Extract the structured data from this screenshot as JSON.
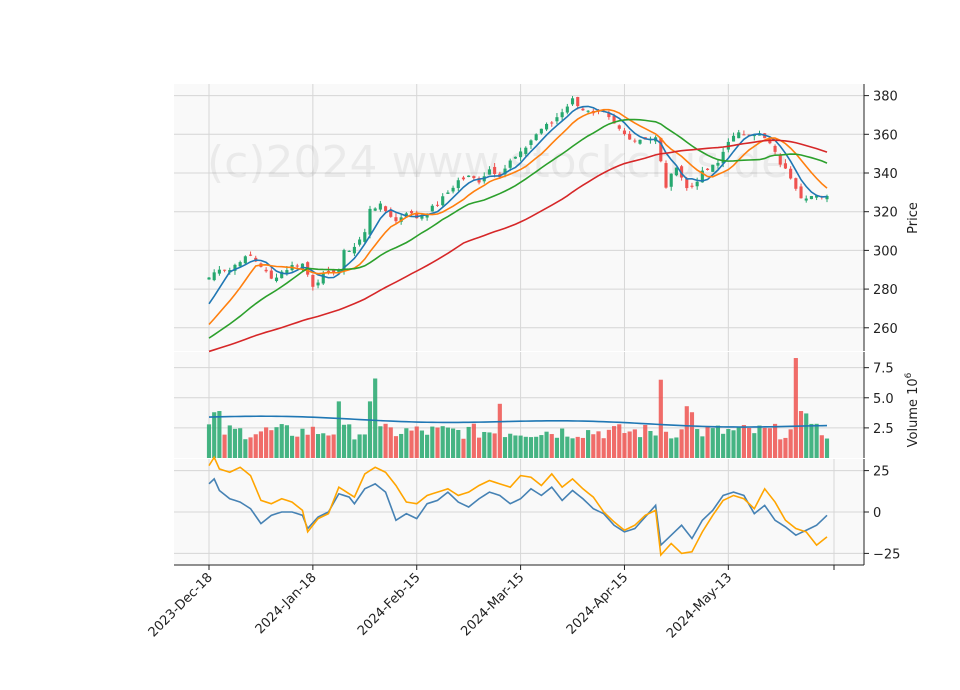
{
  "watermark": "(c)2024 www.stockcrus.de",
  "chart_data": [
    {
      "type": "candlestick",
      "panel": "price",
      "ylabel": "Price",
      "ylim": [
        248,
        386
      ],
      "yticks": [
        260,
        280,
        300,
        320,
        340,
        360,
        380
      ],
      "x_tick_labels": [
        "2023-Dec-18",
        "2024-Jan-18",
        "2024-Feb-15",
        "2024-Mar-15",
        "2024-Apr-15",
        "2024-May-13"
      ],
      "x_tick_indices": [
        0,
        20,
        40,
        60,
        80,
        100
      ],
      "n_bars": 120,
      "anchors": [
        [
          0,
          286
        ],
        [
          2,
          291
        ],
        [
          4,
          290
        ],
        [
          6,
          295
        ],
        [
          8,
          297
        ],
        [
          10,
          292
        ],
        [
          12,
          285
        ],
        [
          14,
          289
        ],
        [
          16,
          292
        ],
        [
          18,
          293
        ],
        [
          20,
          282
        ],
        [
          22,
          287
        ],
        [
          25,
          290
        ],
        [
          26,
          299
        ],
        [
          28,
          302
        ],
        [
          30,
          309
        ],
        [
          31,
          322
        ],
        [
          33,
          323
        ],
        [
          35,
          318
        ],
        [
          36,
          315
        ],
        [
          38,
          320
        ],
        [
          40,
          317
        ],
        [
          42,
          320
        ],
        [
          44,
          324
        ],
        [
          46,
          330
        ],
        [
          48,
          336
        ],
        [
          50,
          338
        ],
        [
          52,
          336
        ],
        [
          54,
          342
        ],
        [
          56,
          339
        ],
        [
          58,
          346
        ],
        [
          60,
          350
        ],
        [
          62,
          357
        ],
        [
          64,
          363
        ],
        [
          66,
          366
        ],
        [
          68,
          372
        ],
        [
          70,
          378
        ],
        [
          72,
          373
        ],
        [
          74,
          370
        ],
        [
          76,
          371
        ],
        [
          78,
          365
        ],
        [
          80,
          360
        ],
        [
          82,
          357
        ],
        [
          84,
          358
        ],
        [
          86,
          358
        ],
        [
          88,
          333
        ],
        [
          90,
          344
        ],
        [
          92,
          332
        ],
        [
          93,
          333
        ],
        [
          95,
          340
        ],
        [
          98,
          345
        ],
        [
          100,
          357
        ],
        [
          102,
          360
        ],
        [
          104,
          361
        ],
        [
          106,
          360
        ],
        [
          108,
          355
        ],
        [
          110,
          345
        ],
        [
          112,
          338
        ],
        [
          114,
          328
        ],
        [
          116,
          328
        ],
        [
          118,
          327
        ],
        [
          119,
          329
        ]
      ],
      "colors": {
        "up": "#26a86f",
        "down": "#ef5350"
      },
      "moving_averages": [
        {
          "window": 5,
          "color": "#1f77b4"
        },
        {
          "window": 10,
          "color": "#ff7f0e"
        },
        {
          "window": 20,
          "color": "#2ca02c"
        },
        {
          "window": 50,
          "color": "#d62728"
        }
      ],
      "ma_start": {
        "ma5": 269,
        "ma10": 259,
        "ma20": 253,
        "ma50": 247
      }
    },
    {
      "type": "bar",
      "panel": "volume",
      "ylabel": "Volume  10",
      "ylabel_exponent": "6",
      "ylim": [
        0,
        8.8
      ],
      "yticks": [
        2.5,
        5.0,
        7.5
      ],
      "ytick_labels": [
        "2.5",
        "5.0",
        "7.5"
      ],
      "typical_volume": 2.2,
      "spikes": [
        [
          1,
          3.8
        ],
        [
          2,
          3.9
        ],
        [
          25,
          4.7
        ],
        [
          31,
          4.7
        ],
        [
          32,
          6.6
        ],
        [
          56,
          4.5
        ],
        [
          87,
          6.5
        ],
        [
          92,
          4.3
        ],
        [
          93,
          3.8
        ],
        [
          113,
          8.3
        ],
        [
          114,
          3.9
        ],
        [
          115,
          3.7
        ]
      ],
      "volume_ma_start": 3.4,
      "volume_ma_end": 2.6,
      "volume_ma_color": "#1f77b4"
    },
    {
      "type": "line",
      "panel": "oscillator",
      "ylim": [
        -32,
        32
      ],
      "yticks": [
        -25,
        0,
        25
      ],
      "ytick_labels": [
        "−25",
        "0",
        "25"
      ],
      "series": [
        {
          "color": "#4682b4",
          "anchors": [
            [
              0,
              17
            ],
            [
              1,
              20
            ],
            [
              2,
              13
            ],
            [
              4,
              8
            ],
            [
              6,
              6
            ],
            [
              8,
              2
            ],
            [
              10,
              -7
            ],
            [
              12,
              -2
            ],
            [
              14,
              0
            ],
            [
              16,
              0
            ],
            [
              18,
              -2
            ],
            [
              19,
              -10
            ],
            [
              21,
              -3
            ],
            [
              23,
              0
            ],
            [
              25,
              11
            ],
            [
              27,
              9
            ],
            [
              28,
              5
            ],
            [
              30,
              14
            ],
            [
              32,
              17
            ],
            [
              34,
              12
            ],
            [
              36,
              -5
            ],
            [
              38,
              -1
            ],
            [
              40,
              -4
            ],
            [
              42,
              5
            ],
            [
              44,
              7
            ],
            [
              46,
              12
            ],
            [
              48,
              6
            ],
            [
              50,
              3
            ],
            [
              52,
              8
            ],
            [
              54,
              12
            ],
            [
              56,
              10
            ],
            [
              58,
              5
            ],
            [
              60,
              8
            ],
            [
              62,
              14
            ],
            [
              64,
              10
            ],
            [
              66,
              15
            ],
            [
              68,
              7
            ],
            [
              70,
              13
            ],
            [
              72,
              8
            ],
            [
              74,
              2
            ],
            [
              76,
              -1
            ],
            [
              78,
              -8
            ],
            [
              80,
              -12
            ],
            [
              82,
              -10
            ],
            [
              84,
              -3
            ],
            [
              86,
              4
            ],
            [
              87,
              -20
            ],
            [
              89,
              -14
            ],
            [
              91,
              -8
            ],
            [
              93,
              -16
            ],
            [
              95,
              -5
            ],
            [
              97,
              1
            ],
            [
              99,
              10
            ],
            [
              101,
              12
            ],
            [
              103,
              10
            ],
            [
              105,
              -1
            ],
            [
              107,
              4
            ],
            [
              109,
              -5
            ],
            [
              111,
              -9
            ],
            [
              113,
              -14
            ],
            [
              115,
              -11
            ],
            [
              117,
              -8
            ],
            [
              119,
              -2
            ]
          ]
        },
        {
          "color": "#ffa500",
          "anchors": [
            [
              0,
              28
            ],
            [
              1,
              33
            ],
            [
              2,
              26
            ],
            [
              4,
              24
            ],
            [
              6,
              27
            ],
            [
              8,
              22
            ],
            [
              10,
              7
            ],
            [
              12,
              5
            ],
            [
              14,
              8
            ],
            [
              16,
              6
            ],
            [
              18,
              1
            ],
            [
              19,
              -12
            ],
            [
              21,
              -4
            ],
            [
              23,
              -1
            ],
            [
              25,
              15
            ],
            [
              27,
              11
            ],
            [
              28,
              9
            ],
            [
              30,
              23
            ],
            [
              32,
              27
            ],
            [
              34,
              24
            ],
            [
              36,
              16
            ],
            [
              38,
              6
            ],
            [
              40,
              5
            ],
            [
              42,
              10
            ],
            [
              44,
              12
            ],
            [
              46,
              14
            ],
            [
              48,
              10
            ],
            [
              50,
              12
            ],
            [
              52,
              16
            ],
            [
              54,
              19
            ],
            [
              56,
              17
            ],
            [
              58,
              15
            ],
            [
              60,
              22
            ],
            [
              62,
              21
            ],
            [
              64,
              16
            ],
            [
              66,
              23
            ],
            [
              68,
              15
            ],
            [
              70,
              20
            ],
            [
              72,
              14
            ],
            [
              74,
              9
            ],
            [
              76,
              0
            ],
            [
              78,
              -6
            ],
            [
              80,
              -11
            ],
            [
              82,
              -8
            ],
            [
              84,
              -2
            ],
            [
              86,
              1
            ],
            [
              87,
              -26
            ],
            [
              89,
              -19
            ],
            [
              91,
              -25
            ],
            [
              93,
              -24
            ],
            [
              95,
              -12
            ],
            [
              97,
              -2
            ],
            [
              99,
              7
            ],
            [
              101,
              10
            ],
            [
              103,
              8
            ],
            [
              105,
              2
            ],
            [
              107,
              14
            ],
            [
              109,
              6
            ],
            [
              111,
              -5
            ],
            [
              113,
              -10
            ],
            [
              115,
              -12
            ],
            [
              117,
              -20
            ],
            [
              119,
              -15
            ]
          ]
        }
      ]
    }
  ]
}
